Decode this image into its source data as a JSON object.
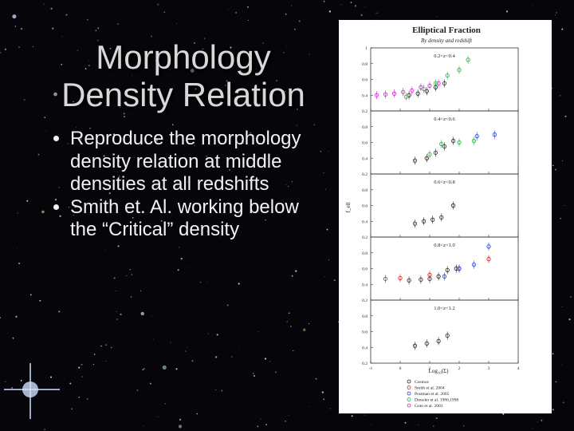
{
  "slide": {
    "title_lines": [
      "Morphology",
      "Density Relation"
    ],
    "bullets": [
      "Reproduce the morphology density relation at middle densities at all redshifts",
      "Smith et. Al. working below the “Critical” density"
    ]
  },
  "figure": {
    "title": "Elliptical Fraction",
    "subtitle": "By density and redshift",
    "y_label": "f_ell",
    "x_label": "Log₁₀(Σ)",
    "xlim": [
      -1,
      4
    ],
    "ylim": [
      0.2,
      1
    ],
    "xticks": [
      -1,
      0,
      1,
      2,
      3,
      4
    ],
    "yticks": [
      0.2,
      0.4,
      0.6,
      0.8,
      1
    ],
    "legend": [
      {
        "name": "Cosmos",
        "color": "#222222"
      },
      {
        "name": "Smith et al. 2004",
        "color": "#d02020"
      },
      {
        "name": "Postman et al. 2005",
        "color": "#2040d0"
      },
      {
        "name": "Dressler et al. 1980,1998",
        "color": "#20b040"
      },
      {
        "name": "Goto et al. 2003",
        "color": "#d020d0"
      }
    ],
    "panels": [
      {
        "label": "0.2<z<0.4",
        "series": [
          {
            "legend": 0,
            "x": [
              0.3,
              0.6,
              0.9,
              1.2,
              1.5
            ],
            "y": [
              0.4,
              0.42,
              0.45,
              0.5,
              0.55
            ]
          },
          {
            "legend": 4,
            "x": [
              -0.8,
              -0.5,
              -0.2,
              0.1,
              0.4,
              0.7,
              1.0,
              1.3
            ],
            "y": [
              0.4,
              0.41,
              0.42,
              0.44,
              0.46,
              0.5,
              0.52,
              0.55
            ]
          },
          {
            "legend": 3,
            "x": [
              0.2,
              0.8,
              1.2,
              1.6,
              2.0,
              2.3
            ],
            "y": [
              0.38,
              0.48,
              0.55,
              0.65,
              0.72,
              0.85
            ]
          }
        ]
      },
      {
        "label": "0.4<z<0.6",
        "series": [
          {
            "legend": 0,
            "x": [
              0.5,
              0.9,
              1.2,
              1.5,
              1.8
            ],
            "y": [
              0.37,
              0.4,
              0.47,
              0.55,
              0.62
            ]
          },
          {
            "legend": 3,
            "x": [
              1.0,
              1.4,
              2.0,
              2.5
            ],
            "y": [
              0.45,
              0.58,
              0.6,
              0.62
            ]
          },
          {
            "legend": 2,
            "x": [
              2.6,
              3.2
            ],
            "y": [
              0.68,
              0.7
            ]
          }
        ]
      },
      {
        "label": "0.6<z<0.8",
        "series": [
          {
            "legend": 0,
            "x": [
              0.5,
              0.8,
              1.1,
              1.4,
              1.8
            ],
            "y": [
              0.37,
              0.4,
              0.42,
              0.45,
              0.6
            ]
          }
        ]
      },
      {
        "label": "0.8<z<1.0",
        "series": [
          {
            "legend": 0,
            "x": [
              0.3,
              0.7,
              1.0,
              1.3,
              1.6,
              1.9
            ],
            "y": [
              0.45,
              0.46,
              0.47,
              0.5,
              0.58,
              0.6
            ]
          },
          {
            "legend": 1,
            "x": [
              -0.5,
              0,
              1.0,
              2.0,
              3.0
            ],
            "y": [
              0.47,
              0.48,
              0.52,
              0.6,
              0.72
            ]
          },
          {
            "legend": 2,
            "x": [
              1.5,
              2.0,
              2.5,
              3.0
            ],
            "y": [
              0.5,
              0.6,
              0.65,
              0.88
            ]
          }
        ]
      },
      {
        "label": "1.0<z<1.2",
        "series": [
          {
            "legend": 0,
            "x": [
              0.5,
              0.9,
              1.3,
              1.6
            ],
            "y": [
              0.42,
              0.45,
              0.48,
              0.55
            ]
          }
        ]
      }
    ]
  }
}
